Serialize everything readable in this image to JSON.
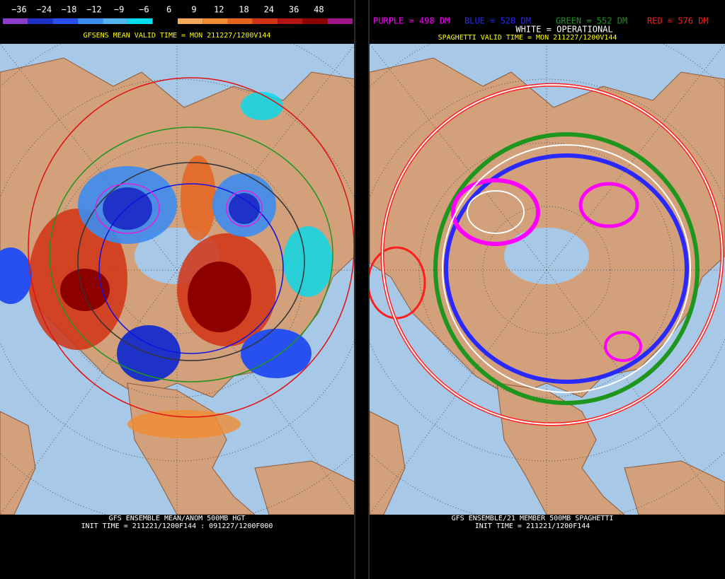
{
  "left_panel": {
    "colorbar": {
      "labels": [
        "−36",
        "−24",
        "−18",
        "−12",
        "−9",
        "−6",
        "6",
        "9",
        "12",
        "18",
        "24",
        "36",
        "48"
      ],
      "colors": [
        "#8c3cc8",
        "#1e32c8",
        "#2850f0",
        "#3c8cf0",
        "#50b4f0",
        "#00dcf0",
        "#000000",
        "#f5aa5a",
        "#f08c32",
        "#e6641e",
        "#d23214",
        "#b41414",
        "#8c0000",
        "#a0148c"
      ]
    },
    "valid_time": "GFSENS MEAN VALID TIME = MON 211227/1200V144",
    "footer": [
      "GFS ENSEMBLE MEAN/ANOM 500MB HGT",
      "INIT TIME = 211221/1200F144 : 091227/1200F000"
    ]
  },
  "right_panel": {
    "legend": [
      {
        "text": "PURPLE = 498 DM",
        "color": "#ff00ff"
      },
      {
        "text": "BLUE = 528 DM",
        "color": "#2828ff"
      },
      {
        "text": "GREEN = 552 DM",
        "color": "#1e961e"
      },
      {
        "text": "RED = 576 DM",
        "color": "#ff1e1e"
      }
    ],
    "operational": "WHITE = OPERATIONAL",
    "valid_time": "SPAGHETTI VALID TIME = MON 211227/1200V144",
    "footer": [
      "GFS ENSEMBLE/21 MEMBER 500MB SPAGHETTI",
      "INIT TIME = 211221/1200F144"
    ]
  }
}
